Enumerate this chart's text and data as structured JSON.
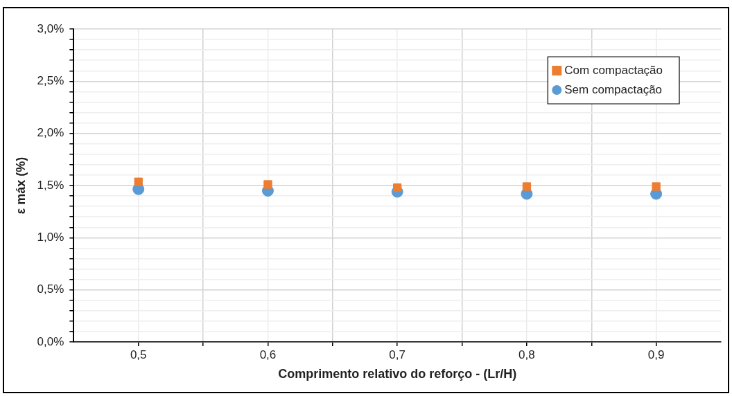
{
  "chart_data": {
    "type": "scatter",
    "xlabel": "Comprimento relativo do reforço - (Lr/H)",
    "ylabel": "ε máx (%)",
    "x": [
      0.5,
      0.6,
      0.7,
      0.8,
      0.9
    ],
    "series": [
      {
        "name": "Com compactação",
        "color": "#ed7d31",
        "marker": "square",
        "values": [
          1.535,
          1.51,
          1.48,
          1.49,
          1.49
        ]
      },
      {
        "name": "Sem compactação",
        "color": "#5b9bd5",
        "marker": "circle",
        "values": [
          1.465,
          1.45,
          1.44,
          1.42,
          1.42
        ]
      }
    ],
    "xlim": [
      0.45,
      0.95
    ],
    "xticks": [
      {
        "value": 0.5,
        "label": "0,5"
      },
      {
        "value": 0.55,
        "label": null
      },
      {
        "value": 0.6,
        "label": "0,6"
      },
      {
        "value": 0.65,
        "label": null
      },
      {
        "value": 0.7,
        "label": "0,7"
      },
      {
        "value": 0.75,
        "label": null
      },
      {
        "value": 0.8,
        "label": "0,8"
      },
      {
        "value": 0.85,
        "label": null
      },
      {
        "value": 0.9,
        "label": "0,9"
      }
    ],
    "ylim": [
      0,
      3
    ],
    "yticks": [
      {
        "value": 0,
        "label": "0,0%"
      },
      {
        "value": 0.1,
        "label": null
      },
      {
        "value": 0.2,
        "label": null
      },
      {
        "value": 0.3,
        "label": null
      },
      {
        "value": 0.4,
        "label": null
      },
      {
        "value": 0.5,
        "label": "0,5%"
      },
      {
        "value": 0.6,
        "label": null
      },
      {
        "value": 0.7,
        "label": null
      },
      {
        "value": 0.8,
        "label": null
      },
      {
        "value": 0.9,
        "label": null
      },
      {
        "value": 1,
        "label": "1,0%"
      },
      {
        "value": 1.1,
        "label": null
      },
      {
        "value": 1.2,
        "label": null
      },
      {
        "value": 1.3,
        "label": null
      },
      {
        "value": 1.4,
        "label": null
      },
      {
        "value": 1.5,
        "label": "1,5%"
      },
      {
        "value": 1.6,
        "label": null
      },
      {
        "value": 1.7,
        "label": null
      },
      {
        "value": 1.8,
        "label": null
      },
      {
        "value": 1.9,
        "label": null
      },
      {
        "value": 2,
        "label": "2,0%"
      },
      {
        "value": 2.1,
        "label": null
      },
      {
        "value": 2.2,
        "label": null
      },
      {
        "value": 2.3,
        "label": null
      },
      {
        "value": 2.4,
        "label": null
      },
      {
        "value": 2.5,
        "label": "2,5%"
      },
      {
        "value": 2.6,
        "label": null
      },
      {
        "value": 2.7,
        "label": null
      },
      {
        "value": 2.8,
        "label": null
      },
      {
        "value": 2.9,
        "label": null
      },
      {
        "value": 3,
        "label": "3,0%"
      }
    ],
    "grid": true,
    "legend": "top right"
  }
}
